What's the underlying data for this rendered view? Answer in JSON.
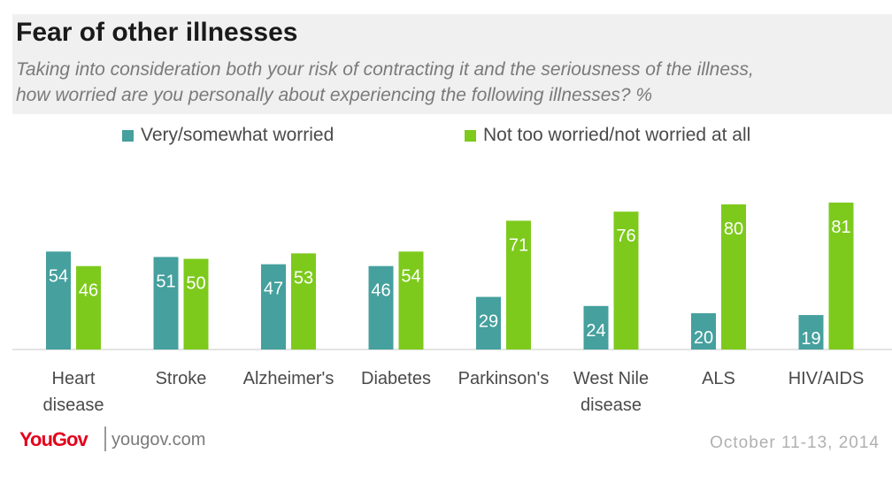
{
  "chart_data": {
    "type": "bar",
    "title": "Fear of other illnesses",
    "subtitle_lines": [
      "Taking into consideration both your risk of contracting it and the seriousness of the illness,",
      "how worried are you personally about experiencing the following illnesses? %"
    ],
    "categories": [
      [
        "Heart",
        "disease"
      ],
      [
        "Stroke"
      ],
      [
        "Alzheimer's"
      ],
      [
        "Diabetes"
      ],
      [
        "Parkinson's"
      ],
      [
        "West Nile",
        "disease"
      ],
      [
        "ALS"
      ],
      [
        "HIV/AIDS"
      ]
    ],
    "series": [
      {
        "name": "Very/somewhat worried",
        "color": "#45a09e",
        "values": [
          54,
          51,
          47,
          46,
          29,
          24,
          20,
          19
        ]
      },
      {
        "name": "Not too worried/not worried at all",
        "color": "#7dca1c",
        "values": [
          46,
          50,
          53,
          54,
          71,
          76,
          80,
          81
        ]
      }
    ],
    "ylim": [
      0,
      100
    ],
    "grid": false,
    "legend": "top"
  },
  "footer": {
    "logo_text": "YouGov",
    "url": "yougov.com",
    "date": "October 11-13, 2014"
  }
}
